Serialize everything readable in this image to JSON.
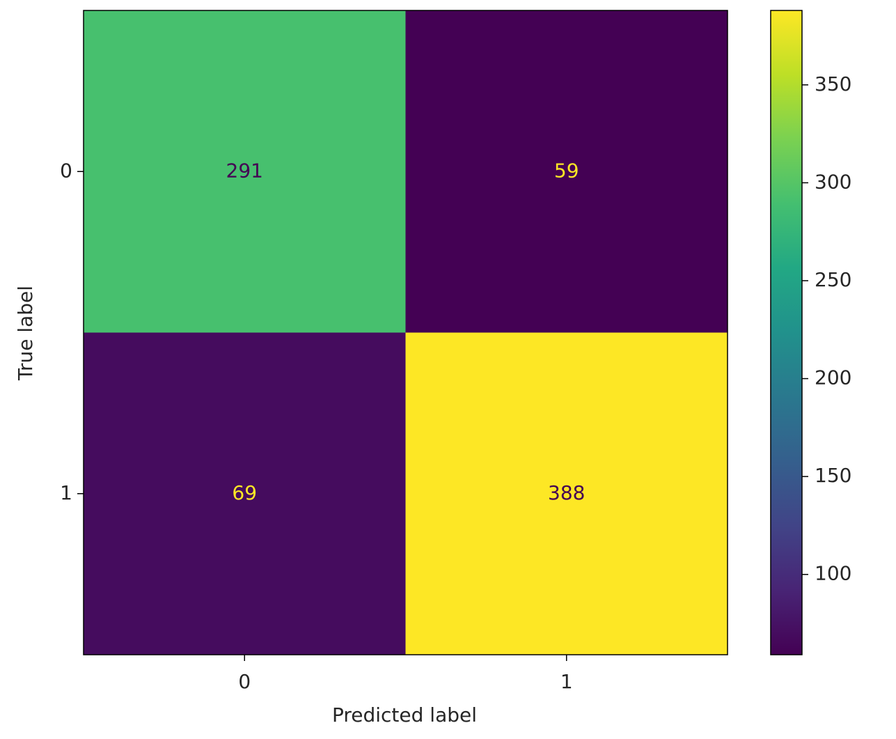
{
  "chart_data": {
    "type": "heatmap",
    "x_categories": [
      "0",
      "1"
    ],
    "y_categories": [
      "0",
      "1"
    ],
    "values": [
      [
        291,
        59
      ],
      [
        69,
        388
      ]
    ],
    "xlabel": "Predicted label",
    "ylabel": "True label",
    "colormap": "viridis",
    "clim": [
      59,
      388
    ],
    "colorbar_ticks": [
      100,
      150,
      200,
      250,
      300,
      350
    ]
  }
}
